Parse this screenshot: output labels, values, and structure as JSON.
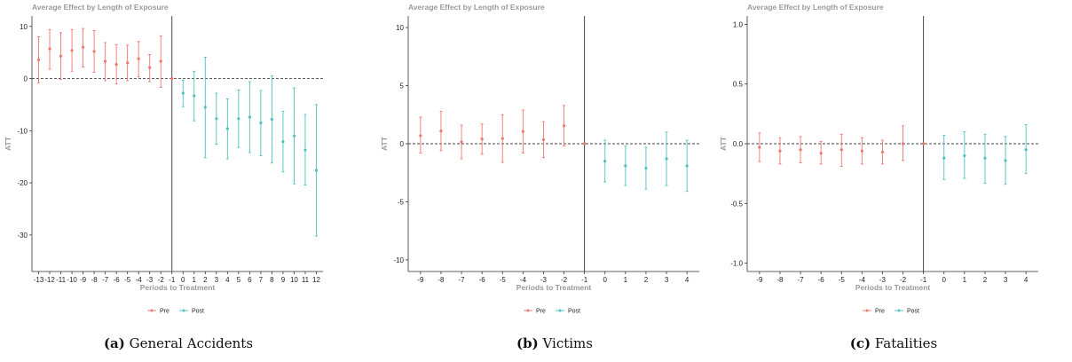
{
  "colors": {
    "pre": "#f0776c",
    "post": "#4fc1c1"
  },
  "chart_data": [
    {
      "type": "scatter",
      "title": "Average Effect by Length of Exposure",
      "xlabel": "Periods to Treatment",
      "ylabel": "ATT",
      "ylim": [
        -37,
        12
      ],
      "yticks": [
        10,
        0,
        -10,
        -20,
        -30
      ],
      "reference_line": {
        "y": 0,
        "style": "dashed"
      },
      "treatment_line": {
        "x": -1
      },
      "legend": {
        "placement": "bottom",
        "entries": [
          "Pre",
          "Post"
        ]
      },
      "caption_label": "(a)",
      "caption_text": "General Accidents",
      "series": [
        {
          "name": "Pre",
          "points": [
            {
              "x": -13,
              "y": 3.6,
              "lo": -0.8,
              "hi": 8.0
            },
            {
              "x": -12,
              "y": 5.7,
              "lo": 1.8,
              "hi": 9.4
            },
            {
              "x": -11,
              "y": 4.3,
              "lo": -0.2,
              "hi": 8.8
            },
            {
              "x": -10,
              "y": 5.4,
              "lo": 1.4,
              "hi": 9.4
            },
            {
              "x": -9,
              "y": 6.0,
              "lo": 2.2,
              "hi": 9.6
            },
            {
              "x": -8,
              "y": 5.2,
              "lo": 1.2,
              "hi": 9.2
            },
            {
              "x": -7,
              "y": 3.3,
              "lo": -0.4,
              "hi": 6.9
            },
            {
              "x": -6,
              "y": 2.7,
              "lo": -1.0,
              "hi": 6.5
            },
            {
              "x": -5,
              "y": 3.0,
              "lo": -0.4,
              "hi": 6.4
            },
            {
              "x": -4,
              "y": 3.8,
              "lo": 0.3,
              "hi": 7.1
            },
            {
              "x": -3,
              "y": 2.1,
              "lo": -0.6,
              "hi": 4.6
            },
            {
              "x": -2,
              "y": 3.3,
              "lo": -1.7,
              "hi": 8.2
            },
            {
              "x": -1,
              "y": 0,
              "lo": 0,
              "hi": 0
            }
          ]
        },
        {
          "name": "Post",
          "points": [
            {
              "x": 0,
              "y": -2.8,
              "lo": -5.4,
              "hi": -0.3
            },
            {
              "x": 1,
              "y": -3.3,
              "lo": -8.1,
              "hi": 1.4
            },
            {
              "x": 2,
              "y": -5.5,
              "lo": -15.2,
              "hi": 4.1
            },
            {
              "x": 3,
              "y": -7.7,
              "lo": -12.6,
              "hi": -2.8
            },
            {
              "x": 4,
              "y": -9.6,
              "lo": -15.4,
              "hi": -3.9
            },
            {
              "x": 5,
              "y": -7.7,
              "lo": -13.2,
              "hi": -2.2
            },
            {
              "x": 6,
              "y": -7.4,
              "lo": -14.2,
              "hi": -0.6
            },
            {
              "x": 7,
              "y": -8.5,
              "lo": -14.8,
              "hi": -2.3
            },
            {
              "x": 8,
              "y": -7.8,
              "lo": -16.2,
              "hi": 0.5
            },
            {
              "x": 9,
              "y": -12.1,
              "lo": -17.9,
              "hi": -6.3
            },
            {
              "x": 10,
              "y": -11.0,
              "lo": -20.2,
              "hi": -1.8
            },
            {
              "x": 11,
              "y": -13.7,
              "lo": -20.4,
              "hi": -6.9
            },
            {
              "x": 12,
              "y": -17.6,
              "lo": -30.2,
              "hi": -5.0
            }
          ]
        }
      ]
    },
    {
      "type": "scatter",
      "title": "Average Effect by Length of Exposure",
      "xlabel": "Periods to Treatment",
      "ylabel": "ATT",
      "ylim": [
        -11,
        11
      ],
      "yticks": [
        10,
        5,
        0,
        -5,
        -10
      ],
      "reference_line": {
        "y": 0,
        "style": "dashed"
      },
      "treatment_line": {
        "x": -1
      },
      "legend": {
        "placement": "bottom",
        "entries": [
          "Pre",
          "Post"
        ]
      },
      "caption_label": "(b)",
      "caption_text": "Victims",
      "series": [
        {
          "name": "Pre",
          "points": [
            {
              "x": -9,
              "y": 0.7,
              "lo": -0.8,
              "hi": 2.3
            },
            {
              "x": -8,
              "y": 1.1,
              "lo": -0.6,
              "hi": 2.8
            },
            {
              "x": -7,
              "y": 0.15,
              "lo": -1.3,
              "hi": 1.6
            },
            {
              "x": -6,
              "y": 0.4,
              "lo": -0.9,
              "hi": 1.7
            },
            {
              "x": -5,
              "y": 0.45,
              "lo": -1.6,
              "hi": 2.5
            },
            {
              "x": -4,
              "y": 1.05,
              "lo": -0.8,
              "hi": 2.9
            },
            {
              "x": -3,
              "y": 0.35,
              "lo": -1.2,
              "hi": 1.9
            },
            {
              "x": -2,
              "y": 1.55,
              "lo": -0.2,
              "hi": 3.3
            },
            {
              "x": -1,
              "y": 0,
              "lo": 0,
              "hi": 0
            }
          ]
        },
        {
          "name": "Post",
          "points": [
            {
              "x": 0,
              "y": -1.5,
              "lo": -3.3,
              "hi": 0.3
            },
            {
              "x": 1,
              "y": -1.9,
              "lo": -3.6,
              "hi": -0.2
            },
            {
              "x": 2,
              "y": -2.1,
              "lo": -3.9,
              "hi": -0.3
            },
            {
              "x": 3,
              "y": -1.3,
              "lo": -3.6,
              "hi": 1.0
            },
            {
              "x": 4,
              "y": -1.9,
              "lo": -4.1,
              "hi": 0.3
            }
          ]
        }
      ]
    },
    {
      "type": "scatter",
      "title": "Average Effect by Length of Exposure",
      "xlabel": "Periods to Treatment",
      "ylabel": "ATT",
      "ylim": [
        -1.07,
        1.07
      ],
      "yticks": [
        1.0,
        0.5,
        0.0,
        -0.5,
        -1.0
      ],
      "reference_line": {
        "y": 0,
        "style": "dashed"
      },
      "treatment_line": {
        "x": -1
      },
      "legend": {
        "placement": "bottom",
        "entries": [
          "Pre",
          "Post"
        ]
      },
      "caption_label": "(c)",
      "caption_text": "Fatalities",
      "series": [
        {
          "name": "Pre",
          "points": [
            {
              "x": -9,
              "y": -0.03,
              "lo": -0.15,
              "hi": 0.09
            },
            {
              "x": -8,
              "y": -0.06,
              "lo": -0.17,
              "hi": 0.05
            },
            {
              "x": -7,
              "y": -0.05,
              "lo": -0.16,
              "hi": 0.06
            },
            {
              "x": -6,
              "y": -0.08,
              "lo": -0.17,
              "hi": 0.02
            },
            {
              "x": -5,
              "y": -0.05,
              "lo": -0.19,
              "hi": 0.08
            },
            {
              "x": -4,
              "y": -0.06,
              "lo": -0.17,
              "hi": 0.05
            },
            {
              "x": -3,
              "y": -0.07,
              "lo": -0.17,
              "hi": 0.03
            },
            {
              "x": -2,
              "y": 0.0,
              "lo": -0.14,
              "hi": 0.15
            },
            {
              "x": -1,
              "y": 0,
              "lo": 0,
              "hi": 0
            }
          ]
        },
        {
          "name": "Post",
          "points": [
            {
              "x": 0,
              "y": -0.12,
              "lo": -0.3,
              "hi": 0.07
            },
            {
              "x": 1,
              "y": -0.1,
              "lo": -0.29,
              "hi": 0.1
            },
            {
              "x": 2,
              "y": -0.12,
              "lo": -0.33,
              "hi": 0.08
            },
            {
              "x": 3,
              "y": -0.14,
              "lo": -0.34,
              "hi": 0.06
            },
            {
              "x": 4,
              "y": -0.05,
              "lo": -0.25,
              "hi": 0.16
            }
          ]
        }
      ]
    }
  ]
}
